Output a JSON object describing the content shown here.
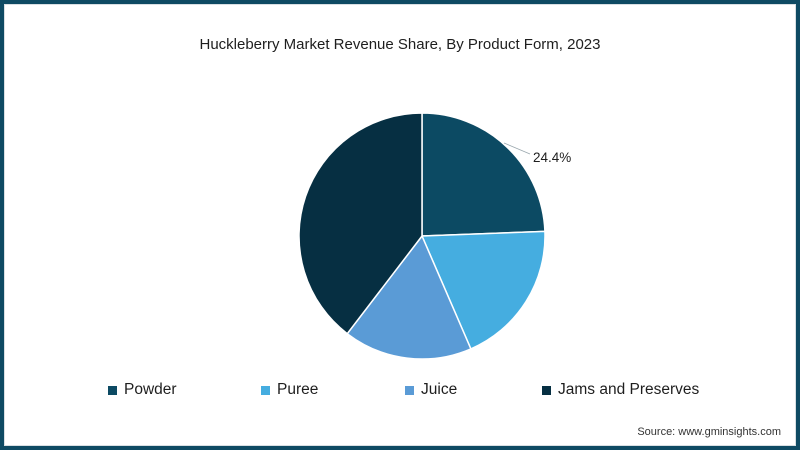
{
  "title": "Huckleberry Market Revenue Share, By Product Form, 2023",
  "source": "Source: www.gminsights.com",
  "colors": {
    "frame": "#0e4a63",
    "background": "#ffffff"
  },
  "chart_data": {
    "type": "pie",
    "title": "Huckleberry Market Revenue Share, By Product Form, 2023",
    "categories": [
      "Powder",
      "Puree",
      "Juice",
      "Jams and Preserves"
    ],
    "values": [
      24.4,
      19.1,
      16.9,
      39.6
    ],
    "unit": "%",
    "colors": [
      "#0c4a63",
      "#45ade0",
      "#5a9bd6",
      "#062f42"
    ],
    "data_labels": [
      {
        "category": "Powder",
        "label": "24.4%"
      }
    ],
    "start_angle": "12 o'clock, clockwise",
    "legend_position": "bottom"
  },
  "legend": [
    {
      "label": "Powder",
      "color": "#0c4a63"
    },
    {
      "label": "Puree",
      "color": "#45ade0"
    },
    {
      "label": "Juice",
      "color": "#5a9bd6"
    },
    {
      "label": "Jams and Preserves",
      "color": "#062f42"
    }
  ],
  "label_text": "24.4%"
}
